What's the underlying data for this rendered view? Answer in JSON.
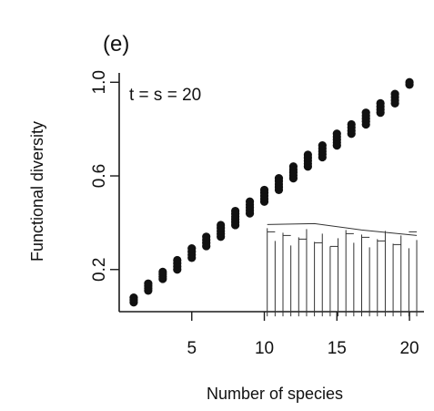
{
  "chart_data": {
    "type": "scatter",
    "panel_label": "(e)",
    "annotation": "t = s = 20",
    "xlabel": "Number of species",
    "ylabel": "Functional diversity",
    "xlim": [
      0,
      21
    ],
    "ylim": [
      0.02,
      1.04
    ],
    "xticks": [
      5,
      10,
      15,
      20
    ],
    "yticks": [
      0.2,
      0.6,
      1.0
    ],
    "ytick_labels": [
      "0.2",
      "0.6",
      "1.0"
    ],
    "grid": false,
    "legend": "none",
    "point_color": "#111111",
    "series": [
      {
        "points": [
          {
            "x": 1,
            "ymin": 0.06,
            "ymax": 0.08
          },
          {
            "x": 2,
            "ymin": 0.11,
            "ymax": 0.14
          },
          {
            "x": 3,
            "ymin": 0.16,
            "ymax": 0.19
          },
          {
            "x": 4,
            "ymin": 0.2,
            "ymax": 0.24
          },
          {
            "x": 5,
            "ymin": 0.25,
            "ymax": 0.29
          },
          {
            "x": 6,
            "ymin": 0.3,
            "ymax": 0.34
          },
          {
            "x": 7,
            "ymin": 0.34,
            "ymax": 0.39
          },
          {
            "x": 8,
            "ymin": 0.39,
            "ymax": 0.45
          },
          {
            "x": 9,
            "ymin": 0.44,
            "ymax": 0.49
          },
          {
            "x": 10,
            "ymin": 0.49,
            "ymax": 0.54
          },
          {
            "x": 11,
            "ymin": 0.54,
            "ymax": 0.59
          },
          {
            "x": 12,
            "ymin": 0.59,
            "ymax": 0.64
          },
          {
            "x": 13,
            "ymin": 0.64,
            "ymax": 0.69
          },
          {
            "x": 14,
            "ymin": 0.68,
            "ymax": 0.73
          },
          {
            "x": 15,
            "ymin": 0.73,
            "ymax": 0.78
          },
          {
            "x": 16,
            "ymin": 0.78,
            "ymax": 0.82
          },
          {
            "x": 17,
            "ymin": 0.82,
            "ymax": 0.87
          },
          {
            "x": 18,
            "ymin": 0.87,
            "ymax": 0.91
          },
          {
            "x": 19,
            "ymin": 0.91,
            "ymax": 0.95
          },
          {
            "x": 20,
            "ymin": 0.99,
            "ymax": 1.0
          }
        ]
      }
    ],
    "inset": {
      "type": "dendrogram",
      "leaves": 20,
      "xrange": [
        10.2,
        20.5
      ],
      "yrange": [
        0.0,
        0.4
      ]
    }
  }
}
